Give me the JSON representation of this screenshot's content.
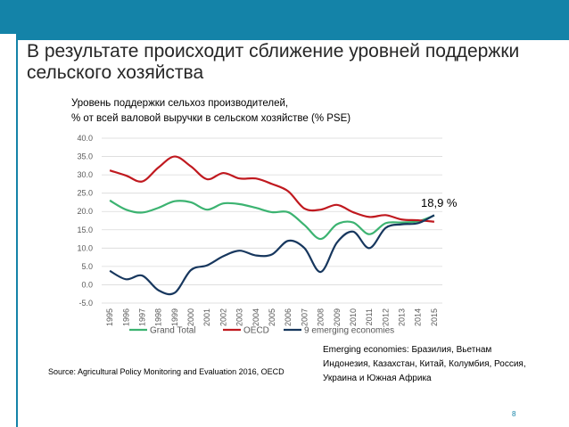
{
  "slide": {
    "title": "В результате происходит сближение уровней поддержки сельского хозяйства",
    "source": "Source: Agricultural Policy Monitoring and Evaluation 2016, OECD",
    "note": "Emerging economies: Бразилия, Вьетнам Индонезия, Казахстан, Китай, Колумбия, Россия, Украина и Южная Африка",
    "page_number": "8",
    "accent_color": "#1483a8"
  },
  "chart_data": {
    "type": "line",
    "title": "Уровень поддержки сельхоз производителей,\n% от всей валовой выручки в сельском хозяйстве (% PSE)",
    "x": [
      "1995",
      "1996",
      "1997",
      "1998",
      "1999",
      "2000",
      "2001",
      "2002",
      "2003",
      "2004",
      "2005",
      "2006",
      "2007",
      "2008",
      "2009",
      "2010",
      "2011",
      "2012",
      "2013",
      "2014",
      "2015"
    ],
    "ylim": [
      -5,
      40
    ],
    "yticks": [
      "-5.0",
      "0.0",
      "5.0",
      "10.0",
      "15.0",
      "20.0",
      "25.0",
      "30.0",
      "35.0",
      "40.0"
    ],
    "grid": true,
    "legend_position": "bottom",
    "end_annotation": "18,9 %",
    "series": [
      {
        "name": "Grand Total",
        "color": "#3cb371",
        "values": [
          23.0,
          20.5,
          19.7,
          21.0,
          22.8,
          22.5,
          20.5,
          22.2,
          22.0,
          21.0,
          19.8,
          19.8,
          16.3,
          12.5,
          16.5,
          17.0,
          13.8,
          16.8,
          17.0,
          17.3,
          18.9
        ]
      },
      {
        "name": "OECD",
        "color": "#c0191f",
        "values": [
          31.2,
          29.8,
          28.2,
          32.0,
          35.0,
          32.3,
          28.8,
          30.5,
          29.0,
          29.0,
          27.5,
          25.5,
          20.8,
          20.5,
          21.8,
          19.8,
          18.5,
          19.0,
          17.8,
          17.6,
          17.2
        ]
      },
      {
        "name": "9 emerging economies",
        "color": "#17375e",
        "values": [
          3.8,
          1.5,
          2.5,
          -1.5,
          -2.2,
          4.0,
          5.3,
          7.8,
          9.3,
          8.0,
          8.3,
          12.0,
          10.0,
          3.5,
          11.5,
          14.5,
          10.0,
          15.5,
          16.5,
          16.8,
          19.0
        ]
      }
    ]
  }
}
